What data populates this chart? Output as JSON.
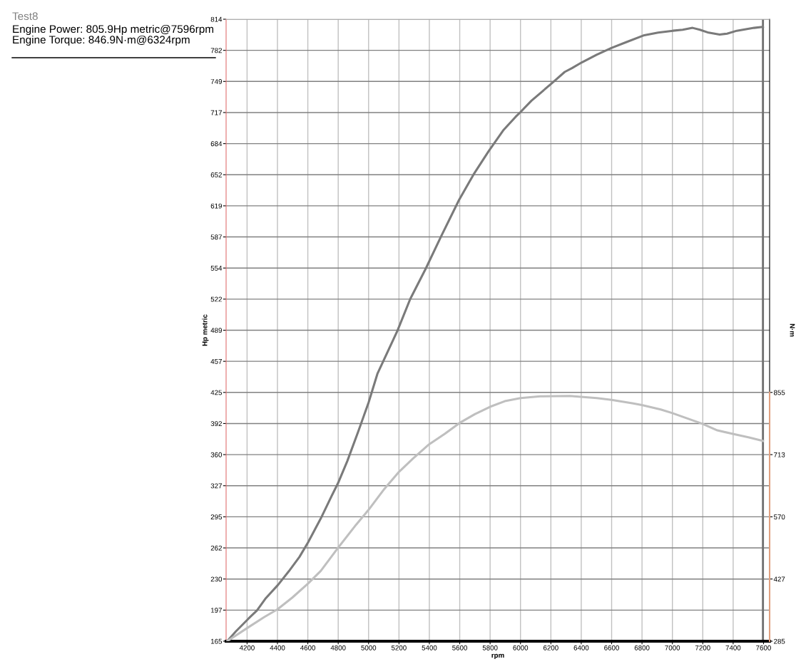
{
  "chart_data": {
    "type": "line",
    "title": "Test8",
    "annotations": [
      "Engine Power: 805.9Hp metric@7596rpm",
      "Engine Torque: 846.9N·m@6324rpm"
    ],
    "xlabel": "rpm",
    "ylabel": "Hp metric",
    "y2label": "N·m",
    "xlim": [
      4062,
      7640
    ],
    "xticks": [
      4200,
      4400,
      4600,
      4800,
      5000,
      5200,
      5400,
      5600,
      5800,
      6000,
      6200,
      6400,
      6600,
      6800,
      7000,
      7200,
      7400,
      7600
    ],
    "ylim": [
      165,
      814
    ],
    "yticks": [
      165,
      {
        "value": 197.45,
        "label": "197"
      },
      {
        "value": 229.9,
        "label": "230"
      },
      {
        "value": 262.35,
        "label": "262"
      },
      {
        "value": 294.8,
        "label": "295"
      },
      {
        "value": 327.25,
        "label": "327"
      },
      {
        "value": 359.7,
        "label": "360"
      },
      {
        "value": 392.15,
        "label": "392"
      },
      {
        "value": 424.6,
        "label": "425"
      },
      {
        "value": 457.05,
        "label": "457"
      },
      {
        "value": 489.5,
        "label": "489"
      },
      {
        "value": 521.95,
        "label": "522"
      },
      {
        "value": 554.4,
        "label": "554"
      },
      {
        "value": 586.85,
        "label": "587"
      },
      {
        "value": 619.3,
        "label": "619"
      },
      {
        "value": 651.75,
        "label": "652"
      },
      {
        "value": 684.2,
        "label": "684"
      },
      {
        "value": 716.65,
        "label": "717"
      },
      {
        "value": 749.1,
        "label": "749"
      },
      {
        "value": 781.55,
        "label": "782"
      },
      814
    ],
    "y2lim": [
      285,
      1710
    ],
    "y2ticks": [
      285,
      {
        "value": 427.5,
        "label": "427"
      },
      570,
      {
        "value": 712.5,
        "label": "713"
      },
      855
    ],
    "grid": true,
    "marker": "none",
    "line_style": "solid",
    "ref_lines": [
      {
        "axis": "x",
        "value": 7596,
        "color": "#707070"
      }
    ],
    "series": [
      {
        "color": "#7a7a7a",
        "x": [
          4069,
          4125,
          4212,
          4265,
          4324,
          4405,
          4475,
          4545,
          4601,
          4685,
          4755,
          4799,
          4860,
          4930,
          5000,
          5058,
          5190,
          5274,
          5377,
          5476,
          5594,
          5691,
          5789,
          5886,
          5967,
          5999,
          6072,
          6205,
          6291,
          6339,
          6404,
          6501,
          6598,
          6695,
          6809,
          6906,
          7003,
          7068,
          7133,
          7181,
          7238,
          7311,
          7360,
          7424,
          7538,
          7596
        ],
        "values": [
          165,
          175,
          189,
          197,
          210,
          224,
          238,
          253,
          268,
          293,
          316,
          330,
          353,
          383,
          414,
          444,
          489,
          522,
          554,
          587,
          625,
          652,
          676,
          698,
          712,
          717,
          729,
          747,
          759,
          763,
          769,
          777,
          784,
          790,
          797,
          800,
          802,
          803,
          805,
          803,
          800,
          798,
          799,
          802,
          805,
          806
        ]
      },
      {
        "color": "#bfbfbf",
        "axis": "y2",
        "x": [
          4069,
          4200,
          4312,
          4400,
          4498,
          4601,
          4685,
          4799,
          4918,
          5000,
          5104,
          5200,
          5291,
          5398,
          5501,
          5599,
          5699,
          5799,
          5897,
          6000,
          6130,
          6324,
          6398,
          6503,
          6599,
          6736,
          6799,
          6923,
          6997,
          7086,
          7198,
          7296,
          7398,
          7505,
          7596
        ],
        "values": [
          285,
          315,
          340,
          358,
          385,
          417,
          446,
          499,
          552,
          586,
          634,
          673,
          703,
          736,
          760,
          785,
          805,
          822,
          835,
          842,
          846,
          847,
          845,
          842,
          838,
          830,
          826,
          816,
          808,
          797,
          783,
          768,
          760,
          752,
          744
        ]
      }
    ]
  }
}
